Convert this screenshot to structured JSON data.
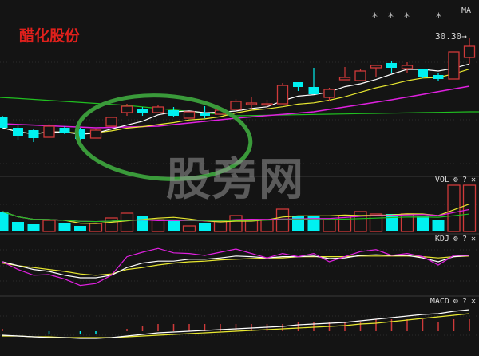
{
  "stock_name": "醋化股份",
  "watermark": "股旁网",
  "stars": [
    "*",
    "*",
    "*",
    "*"
  ],
  "ma_label": "MA",
  "price_marker": "30.30→",
  "panels": {
    "vol": {
      "label": "VOL",
      "settings": "⚙",
      "help": "?",
      "close": "✕"
    },
    "kdj": {
      "label": "KDJ",
      "settings": "⚙",
      "help": "?",
      "close": "✕"
    },
    "macd": {
      "label": "MACD",
      "settings": "⚙",
      "help": "?",
      "close": "✕"
    }
  },
  "colors": {
    "up": "#d03a3a",
    "down": "#00f0f0",
    "ma5": "#ffffff",
    "ma10": "#e8e830",
    "ma30": "#e020e0",
    "ma60": "#20c020",
    "annotation": "#3a9a3a",
    "title": "#e0201c"
  },
  "chart_data": {
    "type": "candlestick",
    "annotation": "green ellipse around candles 6-15",
    "candles": [
      {
        "o": 27.3,
        "c": 26.91,
        "h": 27.36,
        "l": 26.85
      },
      {
        "o": 26.91,
        "c": 26.61,
        "h": 27.0,
        "l": 26.46
      },
      {
        "o": 26.82,
        "c": 26.52,
        "h": 26.88,
        "l": 26.37
      },
      {
        "o": 26.55,
        "c": 26.97,
        "h": 27.06,
        "l": 26.55
      },
      {
        "o": 26.91,
        "c": 26.73,
        "h": 26.97,
        "l": 26.67
      },
      {
        "o": 26.85,
        "c": 26.49,
        "h": 26.91,
        "l": 26.37
      },
      {
        "o": 26.52,
        "c": 26.82,
        "h": 26.88,
        "l": 26.52
      },
      {
        "o": 26.97,
        "c": 27.3,
        "h": 27.3,
        "l": 26.97
      },
      {
        "o": 27.48,
        "c": 27.72,
        "h": 27.81,
        "l": 27.36
      },
      {
        "o": 27.6,
        "c": 27.45,
        "h": 27.69,
        "l": 27.36
      },
      {
        "o": 27.48,
        "c": 27.69,
        "h": 27.78,
        "l": 27.48
      },
      {
        "o": 27.57,
        "c": 27.36,
        "h": 27.69,
        "l": 27.3
      },
      {
        "o": 27.27,
        "c": 27.51,
        "h": 27.51,
        "l": 27.27
      },
      {
        "o": 27.48,
        "c": 27.36,
        "h": 27.72,
        "l": 27.27
      },
      {
        "o": 27.42,
        "c": 27.57,
        "h": 27.66,
        "l": 27.42
      },
      {
        "o": 27.6,
        "c": 27.9,
        "h": 27.99,
        "l": 27.6
      },
      {
        "o": 27.78,
        "c": 27.84,
        "h": 28.05,
        "l": 27.63
      },
      {
        "o": 27.78,
        "c": 27.81,
        "h": 27.96,
        "l": 27.6
      },
      {
        "o": 27.81,
        "c": 28.5,
        "h": 28.59,
        "l": 27.81
      },
      {
        "o": 28.62,
        "c": 28.44,
        "h": 28.62,
        "l": 28.29
      },
      {
        "o": 28.44,
        "c": 28.17,
        "h": 29.16,
        "l": 28.17
      },
      {
        "o": 28.05,
        "c": 28.35,
        "h": 28.41,
        "l": 27.9
      },
      {
        "o": 28.71,
        "c": 28.8,
        "h": 29.19,
        "l": 28.71
      },
      {
        "o": 28.68,
        "c": 29.04,
        "h": 29.13,
        "l": 28.68
      },
      {
        "o": 29.16,
        "c": 29.25,
        "h": 29.25,
        "l": 28.8
      },
      {
        "o": 29.34,
        "c": 29.16,
        "h": 29.4,
        "l": 28.95
      },
      {
        "o": 29.13,
        "c": 29.25,
        "h": 29.37,
        "l": 28.98
      },
      {
        "o": 29.1,
        "c": 28.8,
        "h": 29.1,
        "l": 28.77
      },
      {
        "o": 28.89,
        "c": 28.74,
        "h": 28.95,
        "l": 28.65
      },
      {
        "o": 28.74,
        "c": 29.76,
        "h": 29.76,
        "l": 28.74
      },
      {
        "o": 29.55,
        "c": 29.97,
        "h": 30.3,
        "l": 29.31
      }
    ],
    "ma30_anchors": [
      [
        0,
        27.06
      ],
      [
        6,
        26.91
      ],
      [
        10,
        26.97
      ],
      [
        15,
        27.27
      ],
      [
        20,
        27.51
      ],
      [
        25,
        27.96
      ],
      [
        30,
        28.47
      ]
    ],
    "ma60_anchors": [
      [
        0,
        28.05
      ],
      [
        8,
        27.75
      ],
      [
        15,
        27.36
      ],
      [
        30,
        27.51
      ]
    ],
    "volume": [
      25,
      12,
      9,
      14,
      10,
      7,
      10,
      17,
      23,
      19,
      15,
      15,
      7,
      10,
      13,
      20,
      15,
      15,
      28,
      20,
      20,
      15,
      20,
      25,
      22,
      22,
      22,
      19,
      15,
      58,
      58
    ],
    "kdj": {
      "K": [
        50,
        44,
        38,
        35,
        29,
        25,
        25,
        29,
        41,
        48,
        51,
        51,
        54,
        54,
        56,
        59,
        58,
        56,
        58,
        58,
        59,
        55,
        56,
        60,
        61,
        60,
        60,
        56,
        50,
        58,
        60
      ],
      "D": [
        48,
        44,
        41,
        38,
        35,
        31,
        29,
        31,
        38,
        41,
        45,
        48,
        50,
        51,
        53,
        54,
        55,
        56,
        56,
        58,
        58,
        58,
        58,
        59,
        59,
        59,
        59,
        58,
        56,
        58,
        59
      ],
      "J": [
        50,
        38,
        29,
        30,
        23,
        13,
        16,
        29,
        58,
        65,
        71,
        64,
        63,
        60,
        65,
        70,
        63,
        56,
        63,
        58,
        63,
        50,
        58,
        66,
        69,
        60,
        63,
        58,
        45,
        60,
        60
      ]
    },
    "macd": {
      "DIF": [
        -0.05,
        -0.06,
        -0.07,
        -0.08,
        -0.08,
        -0.09,
        -0.09,
        -0.08,
        -0.06,
        -0.04,
        -0.02,
        -0.01,
        0,
        0.01,
        0.02,
        0.03,
        0.04,
        0.05,
        0.06,
        0.08,
        0.09,
        0.1,
        0.11,
        0.13,
        0.15,
        0.17,
        0.19,
        0.21,
        0.22,
        0.25,
        0.27
      ],
      "DEA": [
        -0.06,
        -0.06,
        -0.07,
        -0.07,
        -0.08,
        -0.08,
        -0.08,
        -0.08,
        -0.07,
        -0.06,
        -0.05,
        -0.04,
        -0.03,
        -0.02,
        -0.01,
        0,
        0.01,
        0.02,
        0.03,
        0.04,
        0.05,
        0.06,
        0.07,
        0.09,
        0.1,
        0.12,
        0.14,
        0.16,
        0.18,
        0.2,
        0.22
      ],
      "MACD": [
        0.02,
        0,
        0,
        -0.02,
        0,
        -0.02,
        -0.02,
        0,
        0.02,
        0.04,
        0.06,
        0.06,
        0.06,
        0.06,
        0.06,
        0.06,
        0.06,
        0.06,
        0.06,
        0.08,
        0.08,
        0.08,
        0.08,
        0.08,
        0.1,
        0.1,
        0.1,
        0.1,
        0.08,
        0.1,
        0.1
      ]
    }
  }
}
